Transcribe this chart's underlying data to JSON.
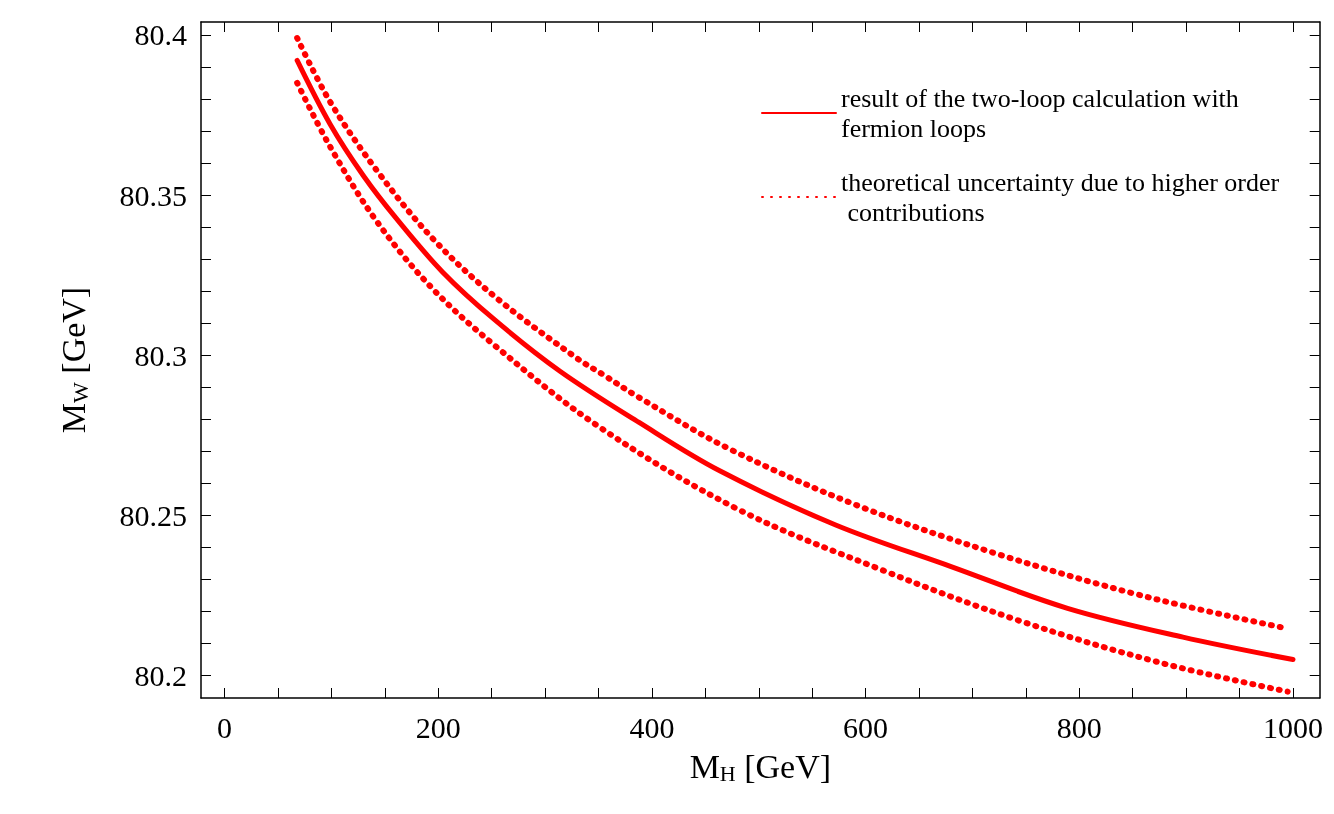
{
  "chart_data": {
    "type": "line",
    "xlabel": "M$_{H}$ [GeV]",
    "ylabel": "M$_{W}$ [GeV]",
    "xlim": [
      -22,
      1025
    ],
    "ylim": [
      80.193,
      80.404
    ],
    "xticks": [
      0,
      {
        "value": 50,
        "label": null
      },
      {
        "value": 100,
        "label": null
      },
      {
        "value": 150,
        "label": null
      },
      200,
      {
        "value": 250,
        "label": null
      },
      {
        "value": 300,
        "label": null
      },
      {
        "value": 350,
        "label": null
      },
      400,
      {
        "value": 450,
        "label": null
      },
      {
        "value": 500,
        "label": null
      },
      {
        "value": 550,
        "label": null
      },
      600,
      {
        "value": 650,
        "label": null
      },
      {
        "value": 700,
        "label": null
      },
      {
        "value": 750,
        "label": null
      },
      800,
      {
        "value": 850,
        "label": null
      },
      {
        "value": 900,
        "label": null
      },
      {
        "value": 950,
        "label": null
      },
      1000
    ],
    "yticks": [
      80.2,
      {
        "value": 80.21,
        "label": null
      },
      {
        "value": 80.22,
        "label": null
      },
      {
        "value": 80.23,
        "label": null
      },
      {
        "value": 80.24,
        "label": null
      },
      80.25,
      {
        "value": 80.26,
        "label": null
      },
      {
        "value": 80.27,
        "label": null
      },
      {
        "value": 80.28,
        "label": null
      },
      {
        "value": 80.29,
        "label": null
      },
      80.3,
      {
        "value": 80.31,
        "label": null
      },
      {
        "value": 80.32,
        "label": null
      },
      {
        "value": 80.33,
        "label": null
      },
      {
        "value": 80.34,
        "label": null
      },
      80.35,
      {
        "value": 80.36,
        "label": null
      },
      {
        "value": 80.37,
        "label": null
      },
      {
        "value": 80.38,
        "label": null
      },
      {
        "value": 80.39,
        "label": null
      },
      80.4
    ],
    "grid": false,
    "legend": "top right",
    "marker": "none",
    "series": [
      {
        "name": "result of the two-loop calculation with fermion loops",
        "color": "#ff0000",
        "line_style": "solid",
        "x": [
          68,
          99,
          130,
          160,
          204,
          253,
          314,
          388,
          463,
          572,
          680,
          789,
          897,
          1000
        ],
        "values": [
          80.392,
          80.372,
          80.356,
          80.343,
          80.326,
          80.311,
          80.295,
          80.279,
          80.264,
          80.247,
          80.234,
          80.221,
          80.212,
          80.205
        ]
      },
      {
        "name": "theoretical uncertainty due to higher order contributions",
        "color": "#ff0000",
        "line_style": "dotted",
        "x": [
          68,
          99,
          144,
          196,
          254,
          330,
          354,
          387,
          471,
          593,
          723,
          858,
          990
        ],
        "values": [
          80.399,
          80.379,
          80.357,
          80.336,
          80.318,
          80.299,
          80.294,
          80.287,
          80.271,
          80.253,
          80.238,
          80.225,
          80.215
        ]
      },
      {
        "color": "#ff0000",
        "line_style": "dotted",
        "x": [
          68,
          99,
          142,
          194,
          253,
          349,
          480,
          615,
          745,
          876,
          995
        ],
        "values": [
          80.385,
          80.365,
          80.342,
          80.321,
          80.303,
          80.278,
          80.252,
          80.233,
          80.217,
          80.204,
          80.195
        ]
      }
    ]
  }
}
